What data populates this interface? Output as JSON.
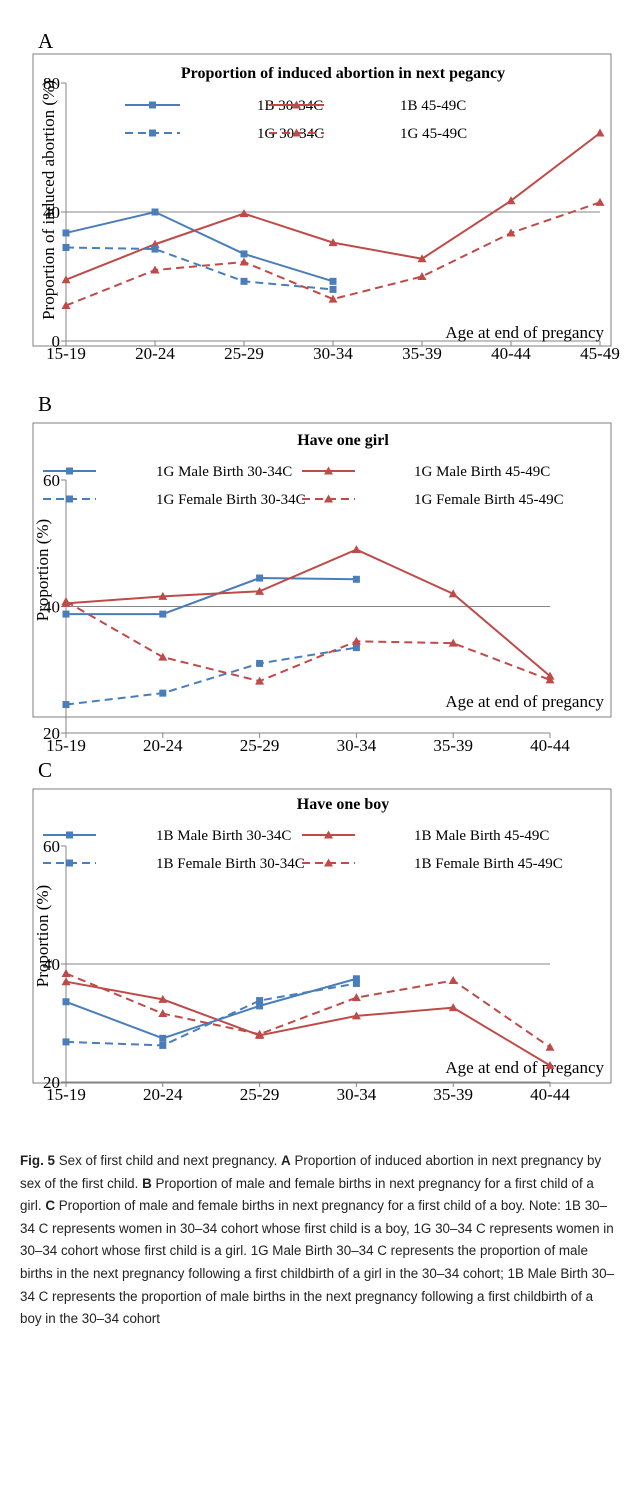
{
  "colors": {
    "blue": "#4a7ebb",
    "red": "#be4b48",
    "grid": "#868686",
    "frame": "#7f7f7f"
  },
  "caption": {
    "fig_label": "Fig. 5",
    "title": "Sex of first child and next pregnancy.",
    "a_label": "A",
    "a_text": "Proportion of induced abortion in next pregnancy by sex of the first child.",
    "b_label": "B",
    "b_text": "Proportion of male and female births in next pregnancy for a first child of a girl.",
    "c_label": "C",
    "c_text": "Proportion of male and female births in next pregnancy for a first child of a boy. Note: 1B 30–34 C represents women in 30–34 cohort whose first child is a boy, 1G 30–34 C represents women in 30–34 cohort whose first child is a girl. 1G Male Birth 30–34 C represents the proportion of male births in the next pregnancy following a first childbirth of a girl in the 30–34 cohort; 1B Male Birth 30–34 C represents the proportion of male births in the next pregnancy following a first childbirth of a boy in the 30–34 cohort"
  },
  "chart_data": [
    {
      "panel": "A",
      "type": "line",
      "title": "Proportion of induced abortion in next pegancy",
      "xlabel": "Age at end of pregancy",
      "ylabel": "Proportion of induced abortion (%)",
      "categories": [
        "15-19",
        "20-24",
        "25-29",
        "30-34",
        "35-39",
        "40-44",
        "45-49"
      ],
      "ylim": [
        0,
        80
      ],
      "yticks": [
        0,
        40,
        80
      ],
      "gridlines": [
        40
      ],
      "legend_position": "top",
      "series": [
        {
          "name": "1B 30-34C",
          "color": "blue",
          "dash": false,
          "marker": "square",
          "values": [
            33.5,
            40,
            27,
            18.5,
            null,
            null,
            null
          ]
        },
        {
          "name": "1B 45-49C",
          "color": "red",
          "dash": false,
          "marker": "triangle",
          "values": [
            19,
            30,
            39.5,
            30.5,
            25.5,
            43.5,
            64.5
          ]
        },
        {
          "name": "1G 30-34C",
          "color": "blue",
          "dash": true,
          "marker": "square",
          "values": [
            29,
            28.5,
            18.5,
            16,
            null,
            null,
            null
          ]
        },
        {
          "name": "1G 45-49C",
          "color": "red",
          "dash": true,
          "marker": "triangle",
          "values": [
            11,
            22,
            24.5,
            13,
            20,
            33.5,
            43
          ]
        }
      ]
    },
    {
      "panel": "B",
      "type": "line",
      "title": "Have one girl",
      "xlabel": "Age at end of pregancy",
      "ylabel": "Proportion (%)",
      "categories": [
        "15-19",
        "20-24",
        "25-29",
        "30-34",
        "35-39",
        "40-44"
      ],
      "ylim": [
        20,
        60
      ],
      "yticks": [
        20,
        40,
        60
      ],
      "gridlines": [
        40
      ],
      "legend_position": "top",
      "series": [
        {
          "name": "1G Male Birth 30-34C",
          "color": "blue",
          "dash": false,
          "marker": "square",
          "values": [
            38.8,
            38.8,
            44.5,
            44.3,
            null,
            null
          ]
        },
        {
          "name": "1G Male Birth 45-49C",
          "color": "red",
          "dash": false,
          "marker": "triangle",
          "values": [
            40.5,
            41.6,
            42.4,
            49,
            42,
            29
          ]
        },
        {
          "name": "1G Female Birth 30-34C",
          "color": "blue",
          "dash": true,
          "marker": "square",
          "values": [
            24.5,
            26.3,
            31,
            33.5,
            null,
            null
          ]
        },
        {
          "name": "1G Female Birth 45-49C",
          "color": "red",
          "dash": true,
          "marker": "triangle",
          "values": [
            40.8,
            32,
            28.2,
            34.5,
            34.2,
            28.4
          ]
        }
      ]
    },
    {
      "panel": "C",
      "type": "line",
      "title": "Have one boy",
      "xlabel": "Age at end of pregancy",
      "ylabel": "Proportion (%)",
      "categories": [
        "15-19",
        "20-24",
        "25-29",
        "30-34",
        "35-39",
        "40-44"
      ],
      "ylim": [
        20,
        60
      ],
      "yticks": [
        20,
        40,
        60
      ],
      "gridlines": [
        40
      ],
      "legend_position": "top",
      "series": [
        {
          "name": "1B Male Birth 30-34C",
          "color": "blue",
          "dash": false,
          "marker": "square",
          "values": [
            33.6,
            27.4,
            32.9,
            37.5,
            null,
            null
          ]
        },
        {
          "name": "1B Male Birth 45-49C",
          "color": "red",
          "dash": false,
          "marker": "triangle",
          "values": [
            37,
            34,
            27.9,
            31.2,
            32.6,
            22.8
          ]
        },
        {
          "name": "1B Female Birth 30-34C",
          "color": "blue",
          "dash": true,
          "marker": "square",
          "values": [
            26.8,
            26.2,
            33.8,
            36.7,
            null,
            null
          ]
        },
        {
          "name": "1B Female Birth 45-49C",
          "color": "red",
          "dash": true,
          "marker": "triangle",
          "values": [
            38.4,
            31.6,
            28.1,
            34.3,
            37.2,
            25.9
          ]
        }
      ]
    }
  ]
}
